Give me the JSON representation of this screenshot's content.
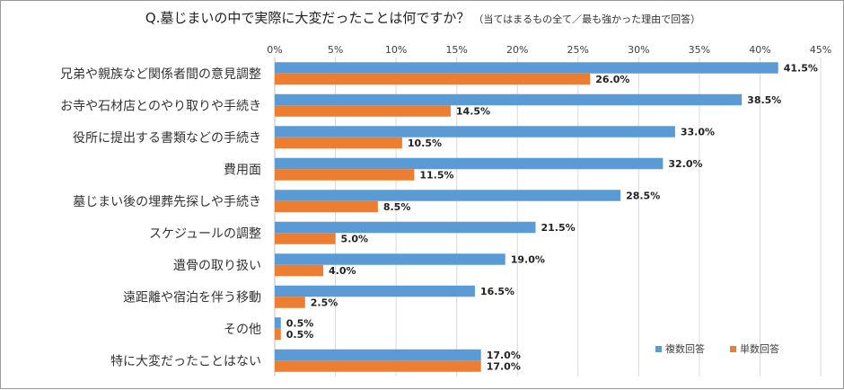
{
  "chart_data": {
    "type": "bar",
    "orientation": "horizontal",
    "title": "Q.墓じまいの中で実際に大変だったことは何ですか？",
    "subtitle": "（当てはまるもの全て／最も強かった理由で回答）",
    "xlim": [
      0,
      45
    ],
    "tick_step": 5,
    "tick_format": "%",
    "grid": true,
    "legend_position": "bottom-right",
    "categories": [
      "兄弟や親族など関係者間の意見調整",
      "お寺や石材店とのやり取りや手続き",
      "役所に提出する書類などの手続き",
      "費用面",
      "墓じまい後の埋葬先探しや手続き",
      "スケジュールの調整",
      "遺骨の取り扱い",
      "遠距離や宿泊を伴う移動",
      "その他",
      "特に大変だったことはない"
    ],
    "series": [
      {
        "name": "複数回答",
        "color": "#5b9bd5",
        "values": [
          41.5,
          38.5,
          33.0,
          32.0,
          28.5,
          21.5,
          19.0,
          16.5,
          0.5,
          17.0
        ],
        "labels": [
          "41.5%",
          "38.5%",
          "33.0%",
          "32.0%",
          "28.5%",
          "21.5%",
          "19.0%",
          "16.5%",
          "0.5%",
          "17.0%"
        ]
      },
      {
        "name": "単数回答",
        "color": "#ed7d31",
        "values": [
          26.0,
          14.5,
          10.5,
          11.5,
          8.5,
          5.0,
          4.0,
          2.5,
          0.5,
          17.0
        ],
        "labels": [
          "26.0%",
          "14.5%",
          "10.5%",
          "11.5%",
          "8.5%",
          "5.0%",
          "4.0%",
          "2.5%",
          "0.5%",
          "17.0%"
        ]
      }
    ]
  }
}
